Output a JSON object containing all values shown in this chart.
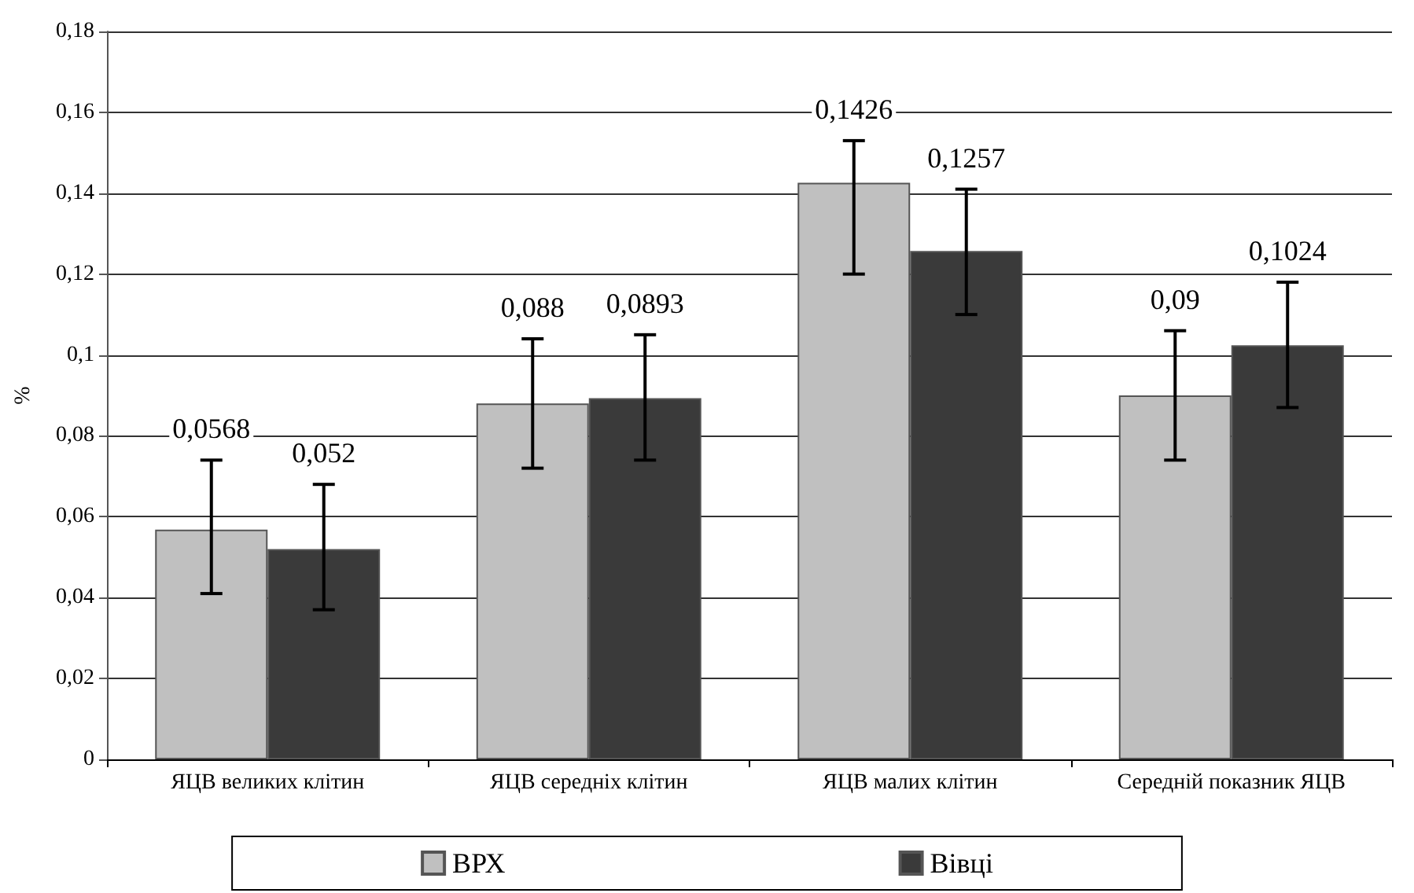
{
  "chart_data": {
    "type": "bar",
    "ylabel": "%",
    "categories": [
      "ЯЦВ великих клітин",
      "ЯЦВ середніх клітин",
      "ЯЦВ малих клітин",
      "Середній показник ЯЦВ"
    ],
    "series": [
      {
        "name": "ВРХ",
        "color": "#c0c0c0",
        "values": [
          0.0568,
          0.088,
          0.1426,
          0.09
        ],
        "value_labels": [
          "0,0568",
          "0,088",
          "0,1426",
          "0,09"
        ],
        "errors": [
          [
            0.041,
            0.074
          ],
          [
            0.072,
            0.104
          ],
          [
            0.12,
            0.153
          ],
          [
            0.074,
            0.106
          ]
        ]
      },
      {
        "name": "Вівці",
        "color": "#3a3a3a",
        "values": [
          0.052,
          0.0893,
          0.1257,
          0.1024
        ],
        "value_labels": [
          "0,052",
          "0,0893",
          "0,1257",
          "0,1024"
        ],
        "errors": [
          [
            0.037,
            0.068
          ],
          [
            0.074,
            0.105
          ],
          [
            0.11,
            0.141
          ],
          [
            0.087,
            0.118
          ]
        ]
      }
    ],
    "ylim": [
      0,
      0.18
    ],
    "yticks": [
      0,
      {
        "value": 0.02,
        "label": "0,02"
      },
      {
        "value": 0.04,
        "label": "0,04"
      },
      {
        "value": 0.06,
        "label": "0,06"
      },
      {
        "value": 0.08,
        "label": "0,08"
      },
      {
        "value": 0.1,
        "label": "0,1"
      },
      {
        "value": 0.12,
        "label": "0,12"
      },
      {
        "value": 0.14,
        "label": "0,14"
      },
      {
        "value": 0.16,
        "label": "0,16"
      },
      {
        "value": 0.18,
        "label": "0,18"
      }
    ],
    "grid": "y",
    "legend": "bottom"
  }
}
